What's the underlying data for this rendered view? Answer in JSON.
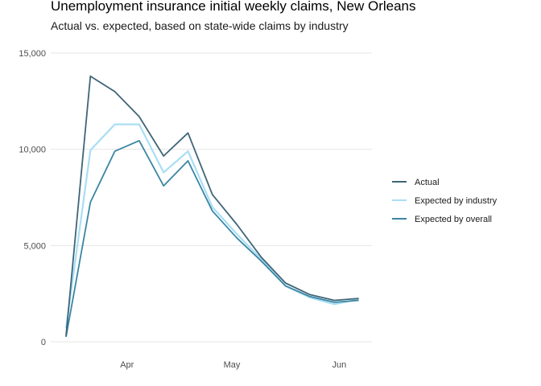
{
  "chart_data": {
    "type": "line",
    "title": "Unemployment insurance initial weekly claims, New Orleans",
    "subtitle": "Actual vs. expected, based on state-wide claims by industry",
    "xlabel": "",
    "ylabel": "",
    "x": [
      "Mar 14",
      "Mar 21",
      "Mar 28",
      "Apr 4",
      "Apr 11",
      "Apr 18",
      "Apr 25",
      "May 2",
      "May 9",
      "May 16",
      "May 23",
      "May 30",
      "Jun 6"
    ],
    "x_ticks": [
      {
        "label": "Apr",
        "index": 2.5
      },
      {
        "label": "May",
        "index": 6.8
      },
      {
        "label": "Jun",
        "index": 11.2
      }
    ],
    "ylim": [
      0,
      15000
    ],
    "y_ticks": [
      {
        "value": 0,
        "label": "0"
      },
      {
        "value": 5000,
        "label": "5,000"
      },
      {
        "value": 10000,
        "label": "10,000"
      },
      {
        "value": 15000,
        "label": "15,000"
      }
    ],
    "grid": true,
    "legend_position": "right",
    "series": [
      {
        "name": "Actual",
        "color": "#3f6577",
        "values": [
          300,
          13800,
          13000,
          11700,
          9650,
          10850,
          7650,
          6100,
          4400,
          3050,
          2450,
          2150,
          2250
        ]
      },
      {
        "name": "Expected by industry",
        "color": "#a8def5",
        "values": [
          700,
          9950,
          11300,
          11300,
          8800,
          9900,
          7000,
          5600,
          4300,
          2900,
          2300,
          1950,
          2200
        ]
      },
      {
        "name": "Expected by overall",
        "color": "#3a86a3",
        "values": [
          250,
          7250,
          9900,
          10450,
          8100,
          9400,
          6800,
          5400,
          4200,
          2900,
          2350,
          2050,
          2150
        ]
      }
    ]
  }
}
